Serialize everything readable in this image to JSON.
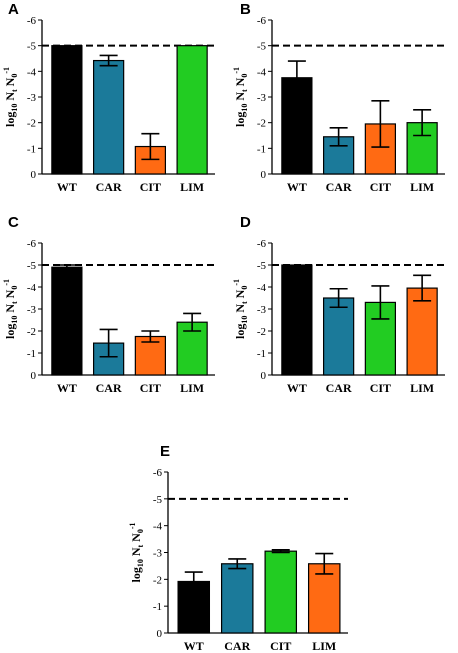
{
  "figure": {
    "colors": {
      "WT": "#000000",
      "CAR": "#1b7a9a",
      "CIT_orange": "#ff6a13",
      "green": "#22cc22",
      "LIM_orange": "#ff6a13"
    }
  },
  "chart_data": [
    {
      "panel": "A",
      "type": "bar",
      "categories": [
        "WT",
        "CAR",
        "CIT",
        "LIM"
      ],
      "values": [
        -5.0,
        -4.42,
        -1.07,
        -5.0
      ],
      "errors": [
        0,
        0.2,
        0.5,
        0
      ],
      "bar_colors": [
        "#000000",
        "#1b7a9a",
        "#ff6a13",
        "#22cc22"
      ],
      "ylabel": "log10 Nt N0-1",
      "ylim": [
        0,
        -6
      ],
      "yticks": [
        "0",
        "-1",
        "-2",
        "-3",
        "-4",
        "-5",
        "-6"
      ],
      "reference_line": -5
    },
    {
      "panel": "B",
      "type": "bar",
      "categories": [
        "WT",
        "CAR",
        "CIT",
        "LIM"
      ],
      "values": [
        -3.75,
        -1.45,
        -1.95,
        -2.0
      ],
      "errors": [
        0.65,
        0.35,
        0.9,
        0.5
      ],
      "bar_colors": [
        "#000000",
        "#1b7a9a",
        "#ff6a13",
        "#22cc22"
      ],
      "ylabel": "log10 Nt N0-1",
      "ylim": [
        0,
        -6
      ],
      "yticks": [
        "0",
        "-1",
        "-2",
        "-3",
        "-4",
        "-5",
        "-6"
      ],
      "reference_line": -5
    },
    {
      "panel": "C",
      "type": "bar",
      "categories": [
        "WT",
        "CAR",
        "CIT",
        "LIM"
      ],
      "values": [
        -4.9,
        -1.45,
        -1.75,
        -2.4
      ],
      "errors": [
        0.1,
        0.62,
        0.25,
        0.4
      ],
      "bar_colors": [
        "#000000",
        "#1b7a9a",
        "#ff6a13",
        "#22cc22"
      ],
      "ylabel": "log10 Nt N0-1",
      "ylim": [
        0,
        -6
      ],
      "yticks": [
        "0",
        "-1",
        "-2",
        "-3",
        "-4",
        "-5",
        "-6"
      ],
      "reference_line": -5
    },
    {
      "panel": "D",
      "type": "bar",
      "categories": [
        "WT",
        "CAR",
        "CIT",
        "LIM"
      ],
      "values": [
        -5.0,
        -3.5,
        -3.3,
        -3.95
      ],
      "errors": [
        0,
        0.42,
        0.75,
        0.58
      ],
      "bar_colors": [
        "#000000",
        "#1b7a9a",
        "#22cc22",
        "#ff6a13"
      ],
      "ylabel": "log10 Nt N0-1",
      "ylim": [
        0,
        -6
      ],
      "yticks": [
        "0",
        "-1",
        "-2",
        "-3",
        "-4",
        "-5",
        "-6"
      ],
      "reference_line": -5
    },
    {
      "panel": "E",
      "type": "bar",
      "categories": [
        "WT",
        "CAR",
        "CIT",
        "LIM"
      ],
      "values": [
        -1.92,
        -2.58,
        -3.05,
        -2.58
      ],
      "errors": [
        0.35,
        0.18,
        0.05,
        0.38
      ],
      "bar_colors": [
        "#000000",
        "#1b7a9a",
        "#22cc22",
        "#ff6a13"
      ],
      "ylabel": "log10 Nt N0-1",
      "ylim": [
        0,
        -6
      ],
      "yticks": [
        "0",
        "-1",
        "-2",
        "-3",
        "-4",
        "-5",
        "-6"
      ],
      "reference_line": -5
    }
  ]
}
